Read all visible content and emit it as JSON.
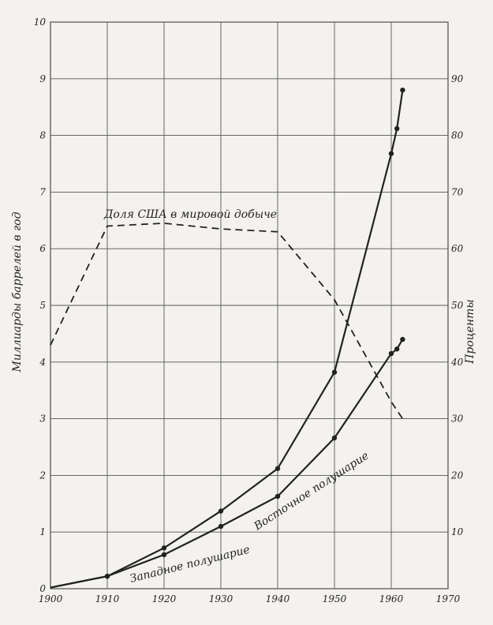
{
  "chart_data": {
    "type": "line",
    "xlim": [
      1900,
      1970
    ],
    "x_ticks": [
      "1900",
      "1910",
      "1920",
      "1930",
      "1940",
      "1950",
      "1960",
      "1970"
    ],
    "ylim_left": [
      0,
      10
    ],
    "y_ticks_left": [
      "0",
      "1",
      "2",
      "3",
      "4",
      "5",
      "6",
      "7",
      "8",
      "9",
      "10"
    ],
    "ylim_right": [
      0,
      100
    ],
    "y_ticks_right": [
      "10",
      "20",
      "30",
      "40",
      "50",
      "60",
      "70",
      "80",
      "90"
    ],
    "ylabel_left": "Миллиарды баррелей в год",
    "ylabel_right": "Проценты",
    "grid": true,
    "series": [
      {
        "name": "Восточное полушарие",
        "axis": "left",
        "style": "solid",
        "x": [
          1900,
          1910,
          1920,
          1930,
          1940,
          1950,
          1960,
          1961,
          1962
        ],
        "y": [
          0.02,
          0.22,
          0.72,
          1.37,
          2.12,
          3.82,
          7.68,
          8.12,
          8.8
        ]
      },
      {
        "name": "Западное полушарие",
        "axis": "left",
        "style": "solid",
        "x": [
          1900,
          1910,
          1920,
          1930,
          1940,
          1950,
          1960,
          1961,
          1962
        ],
        "y": [
          0.02,
          0.22,
          0.6,
          1.1,
          1.63,
          2.66,
          4.15,
          4.23,
          4.4
        ]
      },
      {
        "name": "Доля США в мировой добыче",
        "axis": "right",
        "style": "dashed",
        "x": [
          1900,
          1910,
          1920,
          1930,
          1940,
          1950,
          1960,
          1962
        ],
        "y": [
          43,
          64,
          64.5,
          63.5,
          63,
          51,
          33,
          30
        ]
      }
    ],
    "annotations": [
      "Доля США в мировой добыче",
      "Восточное полушарие",
      "Западное полушарие"
    ]
  }
}
